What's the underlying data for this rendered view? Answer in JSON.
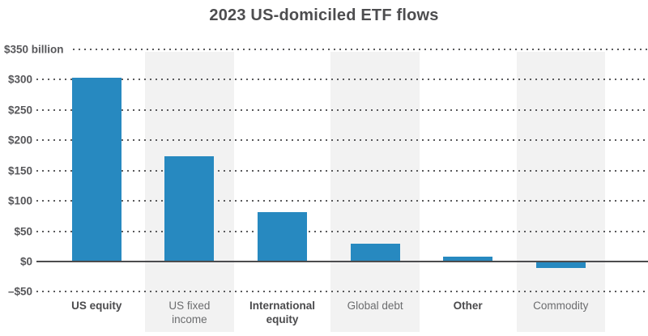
{
  "header": {
    "title": "2023 US-domiciled ETF flows"
  },
  "chart_data": {
    "type": "bar",
    "title": "2023 US-domiciled ETF flows",
    "categories": [
      "US equity",
      "US fixed income",
      "International equity",
      "Global debt",
      "Other",
      "Commodity"
    ],
    "category_lines": [
      [
        "US equity"
      ],
      [
        "US fixed",
        "income"
      ],
      [
        "International",
        "equity"
      ],
      [
        "Global debt"
      ],
      [
        "Other"
      ],
      [
        "Commodity"
      ]
    ],
    "values": [
      303,
      174,
      82,
      29,
      8,
      -10
    ],
    "unit": "billion USD",
    "xlabel": "",
    "ylabel": "$ billion",
    "ylim": [
      -50,
      350
    ],
    "ytick_interval": 50,
    "ytick_labels_top_to_bottom": [
      "$350 billion",
      "$300",
      "$250",
      "$200",
      "$150",
      "$100",
      "$50",
      "$0",
      "–$50"
    ],
    "grid": "horizontal dotted, solid zero line",
    "legend": "none",
    "shaded_band_columns": [
      1,
      3,
      5
    ],
    "bold_label_columns": [
      0,
      2,
      4
    ]
  },
  "colors": {
    "bar": "#2789c0",
    "band": "#f2f2f2",
    "grid_dots": "#5a5a5c",
    "zero_axis": "#4c4c4e",
    "y_labels": "#57575a",
    "title": "#4d4d4f",
    "x_label_bold": "#4b4b4d",
    "x_label_regular": "#6b6c6e",
    "background": "#ffffff"
  }
}
